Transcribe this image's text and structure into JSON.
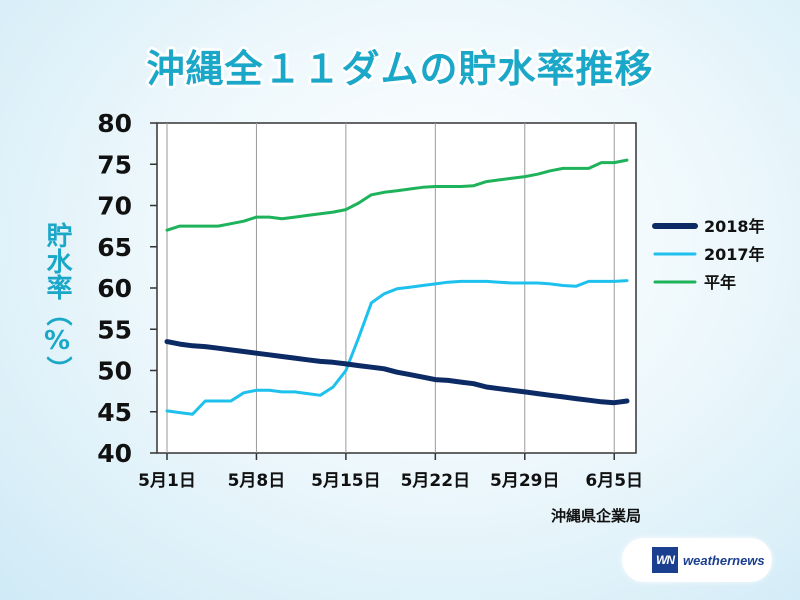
{
  "title": "沖縄全１１ダムの貯水率推移",
  "source": "沖縄県企業局",
  "logo": {
    "text": "weathernews",
    "mark": "WN"
  },
  "colors": {
    "title": "#1aa7c8",
    "s2018": "#0c2a64",
    "s2017": "#1ec0ee",
    "normal": "#1eb35a"
  },
  "chart_data": {
    "type": "line",
    "title": "沖縄全１１ダムの貯水率推移",
    "ylabel": "貯水率（%）",
    "xlabel": "",
    "ylim": [
      40,
      80
    ],
    "yticks": [
      40,
      45,
      50,
      55,
      60,
      65,
      70,
      75,
      80
    ],
    "x": [
      "5/1",
      "5/2",
      "5/3",
      "5/4",
      "5/5",
      "5/6",
      "5/7",
      "5/8",
      "5/9",
      "5/10",
      "5/11",
      "5/12",
      "5/13",
      "5/14",
      "5/15",
      "5/16",
      "5/17",
      "5/18",
      "5/19",
      "5/20",
      "5/21",
      "5/22",
      "5/23",
      "5/24",
      "5/25",
      "5/26",
      "5/27",
      "5/28",
      "5/29",
      "5/30",
      "5/31",
      "6/1",
      "6/2",
      "6/3",
      "6/4",
      "6/5",
      "6/6"
    ],
    "xtick_labels": [
      "5月1日",
      "5月8日",
      "5月15日",
      "5月22日",
      "5月29日",
      "6月5日"
    ],
    "xtick_index": [
      0,
      7,
      14,
      21,
      28,
      35
    ],
    "grid": "vertical",
    "legend_position": "right",
    "series": [
      {
        "name": "2018年",
        "color": "#0c2a64",
        "values": [
          53.5,
          53.2,
          53.0,
          52.9,
          52.7,
          52.5,
          52.3,
          52.1,
          51.9,
          51.7,
          51.5,
          51.3,
          51.1,
          51.0,
          50.8,
          50.6,
          50.4,
          50.2,
          49.8,
          49.5,
          49.2,
          48.9,
          48.8,
          48.6,
          48.4,
          48.0,
          47.8,
          47.6,
          47.4,
          47.2,
          47.0,
          46.8,
          46.6,
          46.4,
          46.2,
          46.1,
          46.3
        ]
      },
      {
        "name": "2017年",
        "color": "#1ec0ee",
        "values": [
          45.1,
          44.9,
          44.7,
          46.3,
          46.3,
          46.3,
          47.3,
          47.6,
          47.6,
          47.4,
          47.4,
          47.2,
          47.0,
          48.0,
          50.0,
          54.0,
          58.2,
          59.3,
          59.9,
          60.1,
          60.3,
          60.5,
          60.7,
          60.8,
          60.8,
          60.8,
          60.7,
          60.6,
          60.6,
          60.6,
          60.5,
          60.3,
          60.2,
          60.8,
          60.8,
          60.8,
          60.9
        ]
      },
      {
        "name": "平年",
        "color": "#1eb35a",
        "values": [
          67.0,
          67.5,
          67.5,
          67.5,
          67.5,
          67.8,
          68.1,
          68.6,
          68.6,
          68.4,
          68.6,
          68.8,
          69.0,
          69.2,
          69.5,
          70.3,
          71.3,
          71.6,
          71.8,
          72.0,
          72.2,
          72.3,
          72.3,
          72.3,
          72.4,
          72.9,
          73.1,
          73.3,
          73.5,
          73.8,
          74.2,
          74.5,
          74.5,
          74.5,
          75.2,
          75.2,
          75.5
        ]
      }
    ]
  }
}
